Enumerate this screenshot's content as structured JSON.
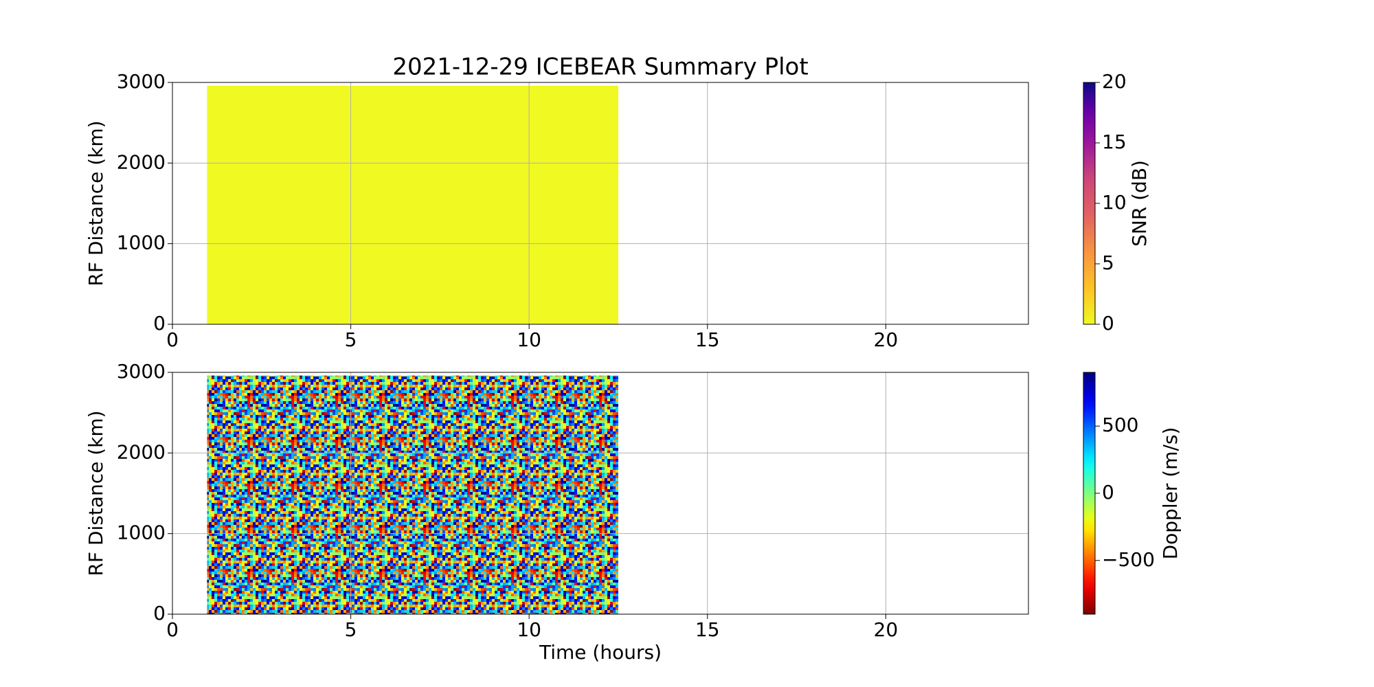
{
  "chart_data": [
    {
      "type": "heatmap",
      "title": "2021-12-29 ICEBEAR Summary Plot",
      "ylabel": "RF Distance (km)",
      "xlim": [
        0,
        24
      ],
      "xticks": [
        0,
        5,
        10,
        15,
        20
      ],
      "ylim": [
        0,
        3000
      ],
      "yticks": [
        0,
        1000,
        2000,
        3000
      ],
      "grid": true,
      "x": [
        0.97,
        12.5
      ],
      "y": [
        0,
        2960
      ],
      "value_range": [
        0,
        0
      ],
      "colorbar": {
        "label": "SNR (dB)",
        "lim": [
          0,
          20
        ],
        "ticks": [
          0,
          5,
          10,
          15,
          20
        ],
        "colormap": "plasma_r"
      }
    },
    {
      "type": "heatmap",
      "xlabel": "Time (hours)",
      "ylabel": "RF Distance (km)",
      "xlim": [
        0,
        24
      ],
      "xticks": [
        0,
        5,
        10,
        15,
        20
      ],
      "ylim": [
        0,
        3000
      ],
      "yticks": [
        0,
        1000,
        2000,
        3000
      ],
      "grid": true,
      "x": [
        0.97,
        12.5
      ],
      "y": [
        0,
        2960
      ],
      "value_range": [
        -900,
        900
      ],
      "colorbar": {
        "label": "Doppler (m/s)",
        "lim": [
          -900,
          900
        ],
        "ticks": [
          {
            "value": -500,
            "label": "−500"
          },
          0,
          500
        ],
        "colormap": "jet_r"
      }
    }
  ]
}
